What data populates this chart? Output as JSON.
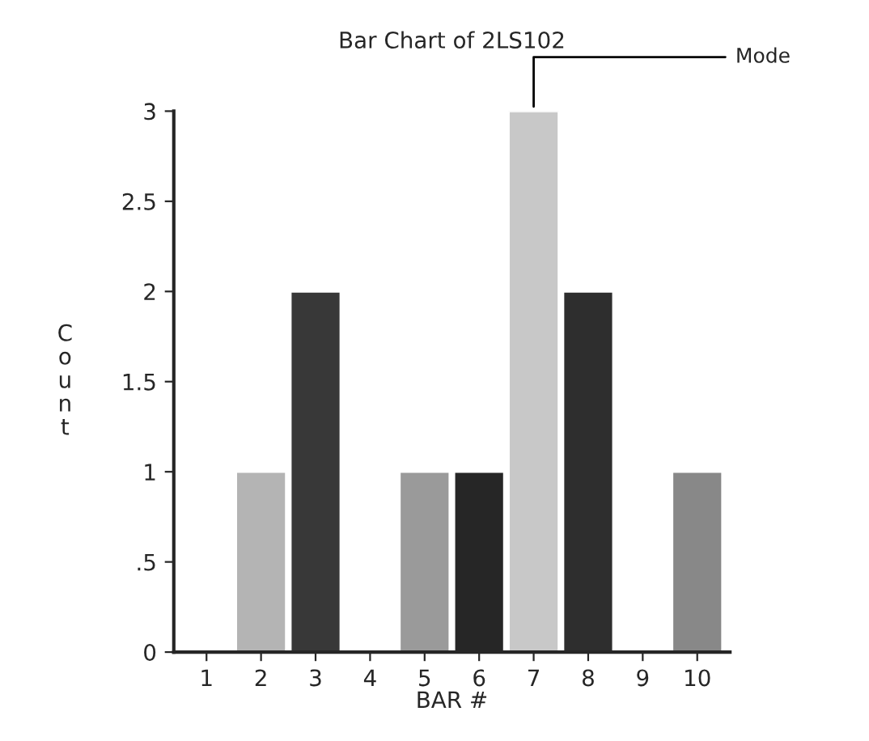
{
  "chart_data": {
    "type": "bar",
    "title": "Bar Chart of 2LS102",
    "xlabel": "BAR #",
    "ylabel": "Count",
    "categories": [
      "1",
      "2",
      "3",
      "4",
      "5",
      "6",
      "7",
      "8",
      "9",
      "10"
    ],
    "values": [
      0,
      1,
      2,
      0,
      1,
      1,
      3,
      2,
      0,
      1
    ],
    "colors": [
      null,
      "#b4b4b4",
      "#383838",
      null,
      "#9a9a9a",
      "#262626",
      "#c8c8c8",
      "#2e2e2e",
      null,
      "#888888"
    ],
    "ylim": [
      0,
      3
    ],
    "yticks": [
      0,
      {
        "value": 0.5,
        "label": ".5"
      },
      1,
      1.5,
      2,
      2.5,
      3
    ],
    "grid": false,
    "legend": false,
    "annotations": [
      {
        "text": "Mode",
        "x": "7",
        "y": 3
      }
    ]
  }
}
